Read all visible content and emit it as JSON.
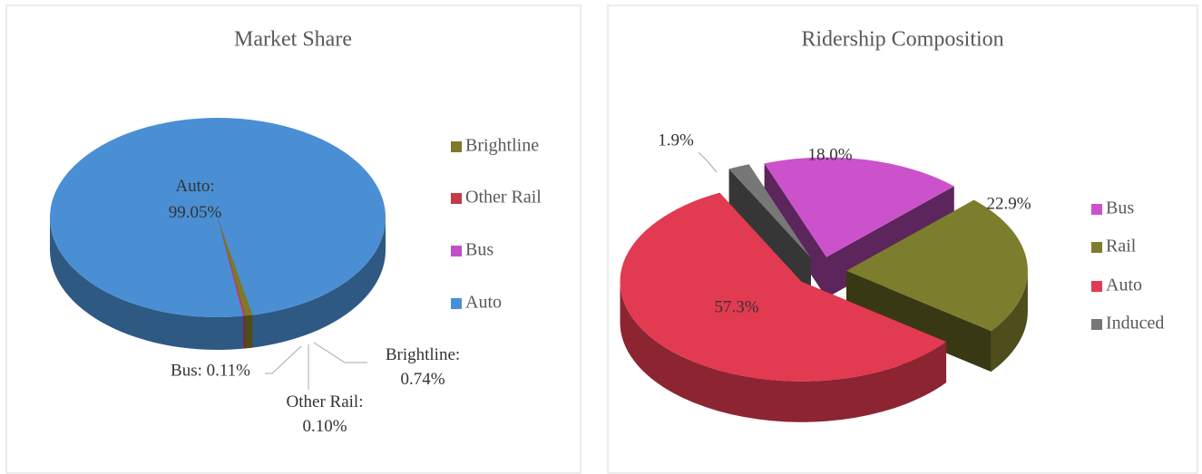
{
  "chart_data": [
    {
      "type": "pie",
      "title": "Market Share",
      "categories": [
        "Brightline",
        "Other Rail",
        "Bus",
        "Auto"
      ],
      "values": [
        0.74,
        0.1,
        0.11,
        99.05
      ],
      "value_labels": [
        "Brightline: 0.74%",
        "Other Rail: 0.10%",
        "Bus: 0.11%",
        "Auto: 99.05%"
      ],
      "colors": [
        "#7d7a2a",
        "#c43a4a",
        "#c24fc8",
        "#4a8fd4"
      ],
      "legend": "right"
    },
    {
      "type": "pie",
      "title": "Ridership Composition",
      "categories": [
        "Bus",
        "Rail",
        "Auto",
        "Induced"
      ],
      "values": [
        18.0,
        22.9,
        57.3,
        1.9
      ],
      "value_labels": [
        "18.0%",
        "22.9%",
        "57.3%",
        "1.9%"
      ],
      "colors": [
        "#cc52cc",
        "#7d7d2e",
        "#e23a50",
        "#777777"
      ],
      "legend": "right"
    }
  ]
}
